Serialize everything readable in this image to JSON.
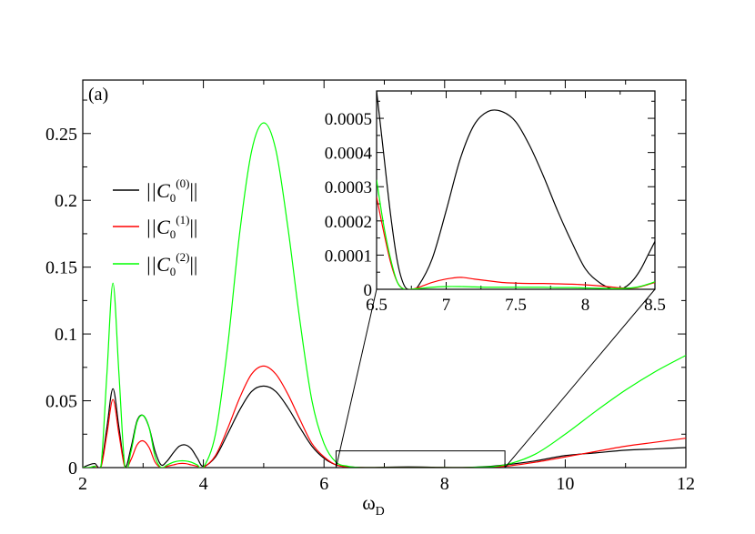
{
  "chart_data": [
    {
      "type": "line",
      "panel_label": "(a)",
      "xlabel": "ω",
      "xlabel_sub": "D",
      "ylabel": "",
      "xlim": [
        2,
        12
      ],
      "ylim": [
        0,
        0.29
      ],
      "x_ticks": [
        2,
        4,
        6,
        8,
        10,
        12
      ],
      "x_tick_labels": [
        "2",
        "4",
        "6",
        "8",
        "10",
        "12"
      ],
      "y_ticks": [
        0,
        0.05,
        0.1,
        0.15,
        0.2,
        0.25
      ],
      "y_tick_labels": [
        "0",
        "0.05",
        "0.1",
        "0.15",
        "0.2",
        "0.25"
      ],
      "grid": false,
      "legend_placement": "left",
      "zoom_box": {
        "x": [
          6.2,
          9.0
        ],
        "y": [
          0,
          0.0125
        ]
      },
      "series": [
        {
          "name_main": "||C",
          "name_sub": "0",
          "name_sup": "(0)",
          "name_end": "||",
          "color": "#000000",
          "x": [
            2.0,
            2.1,
            2.2,
            2.3,
            2.4,
            2.5,
            2.6,
            2.7,
            2.8,
            2.9,
            3.0,
            3.1,
            3.2,
            3.3,
            3.4,
            3.5,
            3.6,
            3.7,
            3.8,
            3.9,
            4.0,
            4.2,
            4.4,
            4.6,
            4.8,
            5.0,
            5.2,
            5.4,
            5.6,
            5.8,
            6.0,
            6.2,
            6.4,
            6.6,
            6.8,
            7.0,
            7.4,
            7.8,
            8.2,
            8.6,
            9.0,
            9.5,
            10.0,
            10.5,
            11.0,
            11.5,
            12.0
          ],
          "y": [
            0.0,
            0.002,
            0.003,
            0.001,
            0.03,
            0.059,
            0.03,
            0.001,
            0.015,
            0.035,
            0.039,
            0.03,
            0.012,
            0.002,
            0.005,
            0.011,
            0.016,
            0.017,
            0.014,
            0.007,
            0.001,
            0.008,
            0.025,
            0.043,
            0.057,
            0.061,
            0.057,
            0.045,
            0.03,
            0.016,
            0.007,
            0.002,
            0.0005,
            0.0001,
            0.0,
            0.0003,
            0.0005,
            0.0003,
            0.0,
            0.0005,
            0.002,
            0.005,
            0.009,
            0.011,
            0.013,
            0.014,
            0.015
          ]
        },
        {
          "name_main": "||C",
          "name_sub": "0",
          "name_sup": "(1)",
          "name_end": "||",
          "color": "#ff0000",
          "x": [
            2.0,
            2.1,
            2.2,
            2.3,
            2.4,
            2.5,
            2.6,
            2.7,
            2.8,
            2.9,
            3.0,
            3.1,
            3.2,
            3.3,
            3.4,
            3.5,
            3.6,
            3.7,
            3.8,
            3.9,
            4.0,
            4.2,
            4.4,
            4.6,
            4.8,
            5.0,
            5.2,
            5.4,
            5.6,
            5.8,
            6.0,
            6.2,
            6.4,
            6.6,
            6.8,
            7.0,
            7.4,
            7.8,
            8.2,
            8.6,
            9.0,
            9.5,
            10.0,
            10.5,
            11.0,
            11.5,
            12.0
          ],
          "y": [
            0.0,
            0.0,
            0.001,
            0.0,
            0.025,
            0.051,
            0.025,
            0.0,
            0.006,
            0.017,
            0.02,
            0.015,
            0.004,
            0.0,
            0.001,
            0.002,
            0.003,
            0.003,
            0.002,
            0.001,
            0.0,
            0.009,
            0.029,
            0.052,
            0.07,
            0.076,
            0.07,
            0.055,
            0.036,
            0.018,
            0.008,
            0.002,
            0.0005,
            0.0001,
            0.0,
            3e-05,
            2e-05,
            1e-05,
            0.0,
            0.0003,
            0.001,
            0.004,
            0.008,
            0.012,
            0.016,
            0.019,
            0.022
          ]
        },
        {
          "name_main": "||C",
          "name_sub": "0",
          "name_sup": "(2)",
          "name_end": "||",
          "color": "#00ff00",
          "x": [
            2.0,
            2.1,
            2.2,
            2.3,
            2.4,
            2.5,
            2.6,
            2.7,
            2.8,
            2.9,
            3.0,
            3.1,
            3.2,
            3.3,
            3.4,
            3.5,
            3.6,
            3.7,
            3.8,
            3.9,
            4.0,
            4.2,
            4.4,
            4.6,
            4.8,
            5.0,
            5.2,
            5.4,
            5.6,
            5.8,
            6.0,
            6.2,
            6.4,
            6.6,
            6.8,
            7.0,
            7.4,
            7.8,
            8.2,
            8.6,
            9.0,
            9.5,
            10.0,
            10.5,
            11.0,
            11.5,
            12.0
          ],
          "y": [
            0.0,
            0.0,
            0.001,
            0.0,
            0.07,
            0.138,
            0.07,
            0.0,
            0.012,
            0.034,
            0.039,
            0.03,
            0.008,
            0.0,
            0.002,
            0.004,
            0.005,
            0.005,
            0.004,
            0.002,
            0.0,
            0.025,
            0.09,
            0.175,
            0.237,
            0.258,
            0.238,
            0.18,
            0.11,
            0.05,
            0.018,
            0.004,
            0.001,
            0.0001,
            0.0,
            1e-05,
            1e-05,
            1e-05,
            0.0,
            0.0004,
            0.002,
            0.01,
            0.025,
            0.042,
            0.058,
            0.072,
            0.084
          ]
        }
      ]
    },
    {
      "type": "line",
      "panel_label": "",
      "xlabel": "",
      "ylabel": "",
      "xlim": [
        6.5,
        8.5
      ],
      "ylim": [
        0,
        0.00058
      ],
      "x_ticks": [
        6.5,
        7,
        7.5,
        8,
        8.5
      ],
      "x_tick_labels": [
        "6.5",
        "7",
        "7.5",
        "8",
        "8.5"
      ],
      "y_ticks": [
        0,
        0.0001,
        0.0002,
        0.0003,
        0.0004,
        0.0005
      ],
      "y_tick_labels": [
        "0",
        "0.0001",
        "0.0002",
        "0.0003",
        "0.0004",
        "0.0005"
      ],
      "grid": false,
      "series": [
        {
          "color": "#000000",
          "x": [
            6.5,
            6.55,
            6.6,
            6.65,
            6.7,
            6.75,
            6.8,
            6.9,
            7.0,
            7.1,
            7.2,
            7.3,
            7.4,
            7.5,
            7.6,
            7.7,
            7.8,
            7.9,
            8.0,
            8.1,
            8.2,
            8.25,
            8.3,
            8.35,
            8.4,
            8.45,
            8.5
          ],
          "y": [
            0.00058,
            0.0004,
            0.00022,
            8e-05,
            1e-05,
            0.0,
            1e-05,
            9e-05,
            0.00023,
            0.00038,
            0.00048,
            0.00052,
            0.00052,
            0.00049,
            0.00042,
            0.00033,
            0.00023,
            0.00014,
            6e-05,
            2e-05,
            0.0,
            0.0,
            1e-05,
            3e-05,
            6e-05,
            0.0001,
            0.00014
          ]
        },
        {
          "color": "#ff0000",
          "x": [
            6.5,
            6.55,
            6.6,
            6.65,
            6.7,
            6.75,
            6.8,
            6.9,
            7.0,
            7.1,
            7.2,
            7.3,
            7.4,
            7.5,
            7.6,
            7.7,
            7.8,
            7.9,
            8.0,
            8.1,
            8.2,
            8.25,
            8.3,
            8.35,
            8.4,
            8.45,
            8.5
          ],
          "y": [
            0.00027,
            0.00017,
            8e-05,
            2e-05,
            0.0,
            0.0,
            5e-06,
            2e-05,
            3e-05,
            3.5e-05,
            3e-05,
            2.5e-05,
            2e-05,
            1.8e-05,
            1.7e-05,
            1.7e-05,
            1.6e-05,
            1.5e-05,
            1.3e-05,
            1e-05,
            6e-06,
            4e-06,
            3e-06,
            4e-06,
            8e-06,
            1.4e-05,
            2e-05
          ]
        },
        {
          "color": "#00ff00",
          "x": [
            6.5,
            6.55,
            6.6,
            6.65,
            6.7,
            6.75,
            6.8,
            6.9,
            7.0,
            7.1,
            7.2,
            7.3,
            7.4,
            7.5,
            7.6,
            7.7,
            7.8,
            7.9,
            8.0,
            8.1,
            8.2,
            8.25,
            8.3,
            8.35,
            8.4,
            8.45,
            8.5
          ],
          "y": [
            0.00032,
            0.00019,
            9e-05,
            2e-05,
            0.0,
            0.0,
            2e-06,
            6e-06,
            8e-06,
            8e-06,
            7e-06,
            6e-06,
            6e-06,
            6e-06,
            6e-06,
            6e-06,
            5e-06,
            5e-06,
            4e-06,
            3e-06,
            2e-06,
            2e-06,
            3e-06,
            5e-06,
            9e-06,
            1.5e-05,
            2.2e-05
          ]
        }
      ]
    }
  ]
}
